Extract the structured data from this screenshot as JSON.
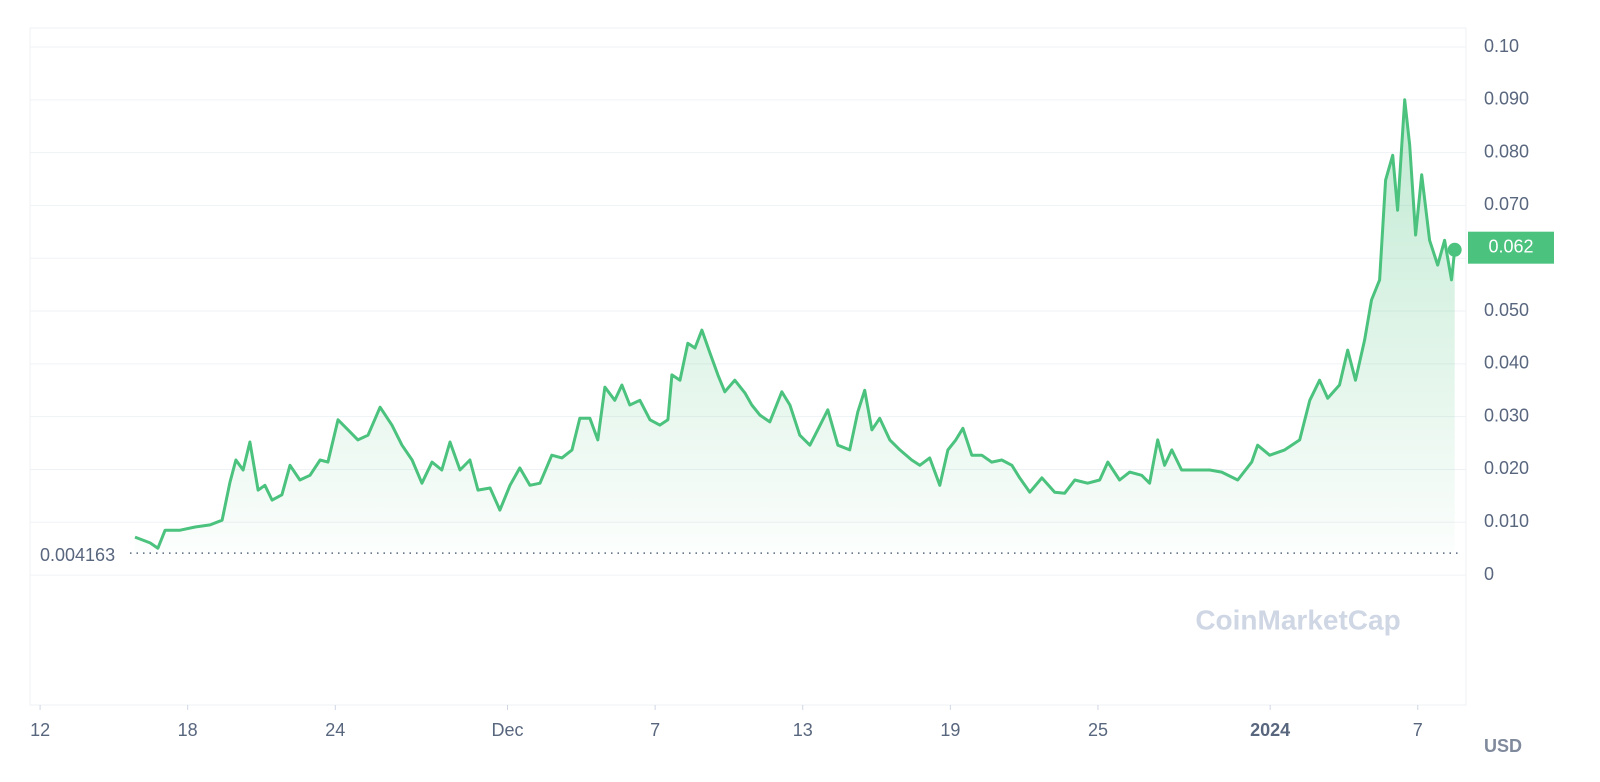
{
  "chart_data": {
    "type": "line",
    "x": [
      3.86,
      4.47,
      4.79,
      5.08,
      5.69,
      6.3,
      6.91,
      7.4,
      7.72,
      7.96,
      8.25,
      8.53,
      8.86,
      9.14,
      9.43,
      9.83,
      10.16,
      10.56,
      10.97,
      11.38,
      11.7,
      12.11,
      12.52,
      12.92,
      13.33,
      13.82,
      14.3,
      14.71,
      15.12,
      15.52,
      15.93,
      16.33,
      16.66,
      17.07,
      17.47,
      17.8,
      18.29,
      18.69,
      19.1,
      19.5,
      19.91,
      20.32,
      20.8,
      21.21,
      21.62,
      21.94,
      22.35,
      22.67,
      22.96,
      23.36,
      23.65,
      23.97,
      24.38,
      24.79,
      25.19,
      25.52,
      25.68,
      26.01,
      26.33,
      26.62,
      26.9,
      27.22,
      27.55,
      27.83,
      28.24,
      28.65,
      28.93,
      29.26,
      29.66,
      30.15,
      30.48,
      30.88,
      31.29,
      31.61,
      32.02,
      32.43,
      32.91,
      33.24,
      33.52,
      33.81,
      34.13,
      34.54,
      34.95,
      35.43,
      35.76,
      36.16,
      36.57,
      36.9,
      37.22,
      37.51,
      37.87,
      38.28,
      38.68,
      39.09,
      39.5,
      39.82,
      40.23,
      40.72,
      41.24,
      41.65,
      42.06,
      42.58,
      43.07,
      43.4,
      43.88,
      44.29,
      44.78,
      45.1,
      45.43,
      45.71,
      46.0,
      46.4,
      46.93,
      47.54,
      48.03,
      48.68,
      49.25,
      49.49,
      49.98,
      50.59,
      51.2,
      51.61,
      52.01,
      52.34,
      52.82,
      53.15,
      53.47,
      53.84,
      54.12,
      54.45,
      54.69,
      54.98,
      55.18,
      55.47,
      55.67,
      55.91,
      56.16,
      56.48,
      56.81,
      57.09,
      57.37,
      57.5
    ],
    "series": [
      {
        "color": "#4bc27d",
        "values": [
          0.0072,
          0.0061,
          0.0051,
          0.0085,
          0.0085,
          0.0091,
          0.0095,
          0.0104,
          0.0176,
          0.0218,
          0.0199,
          0.0252,
          0.0161,
          0.017,
          0.0142,
          0.0152,
          0.0208,
          0.018,
          0.0189,
          0.0218,
          0.0214,
          0.0294,
          0.0275,
          0.0256,
          0.0265,
          0.0318,
          0.0284,
          0.0246,
          0.0218,
          0.0174,
          0.0214,
          0.0199,
          0.0252,
          0.0199,
          0.0218,
          0.0161,
          0.0165,
          0.0123,
          0.017,
          0.0203,
          0.017,
          0.0174,
          0.0227,
          0.0222,
          0.0237,
          0.0297,
          0.0297,
          0.0256,
          0.0356,
          0.0331,
          0.036,
          0.0322,
          0.0331,
          0.0294,
          0.0284,
          0.0294,
          0.0379,
          0.0369,
          0.0439,
          0.043,
          0.0464,
          0.0422,
          0.0379,
          0.0347,
          0.0369,
          0.0345,
          0.0322,
          0.0303,
          0.029,
          0.0347,
          0.0322,
          0.0265,
          0.0246,
          0.0275,
          0.0313,
          0.0246,
          0.0237,
          0.0309,
          0.035,
          0.0275,
          0.0297,
          0.0256,
          0.0237,
          0.0218,
          0.0208,
          0.0222,
          0.017,
          0.0237,
          0.0256,
          0.0278,
          0.0227,
          0.0227,
          0.0214,
          0.0218,
          0.0208,
          0.0184,
          0.0157,
          0.0184,
          0.0157,
          0.0155,
          0.018,
          0.0174,
          0.018,
          0.0214,
          0.018,
          0.0195,
          0.0189,
          0.0174,
          0.0256,
          0.0208,
          0.0237,
          0.0199,
          0.0199,
          0.0199,
          0.0195,
          0.018,
          0.0214,
          0.0246,
          0.0227,
          0.0237,
          0.0256,
          0.0331,
          0.0369,
          0.0335,
          0.036,
          0.0426,
          0.0369,
          0.0445,
          0.0521,
          0.0559,
          0.0748,
          0.0795,
          0.0691,
          0.09,
          0.0814,
          0.0644,
          0.0758,
          0.0634,
          0.0587,
          0.0634,
          0.0559,
          0.0616
        ]
      }
    ],
    "xlim": [
      -0.41,
      57.96
    ],
    "xticks": [
      {
        "value": 0,
        "label": "12"
      },
      {
        "value": 6,
        "label": "18"
      },
      {
        "value": 12,
        "label": "24"
      },
      {
        "value": 19,
        "label": "Dec"
      },
      {
        "value": 25,
        "label": "7"
      },
      {
        "value": 31,
        "label": "13"
      },
      {
        "value": 37,
        "label": "19"
      },
      {
        "value": 43,
        "label": "25"
      },
      {
        "value": 50,
        "label": "2024"
      },
      {
        "value": 56,
        "label": "7"
      }
    ],
    "ylim": [
      -0.0246,
      0.1036
    ],
    "yticks": [
      0,
      {
        "value": 0.01,
        "label": "0.010"
      },
      {
        "value": 0.02,
        "label": "0.020"
      },
      {
        "value": 0.03,
        "label": "0.030"
      },
      {
        "value": 0.04,
        "label": "0.040"
      },
      {
        "value": 0.05,
        "label": "0.050"
      },
      {
        "value": 0.06,
        "label": "0.060"
      },
      {
        "value": 0.07,
        "label": "0.070"
      },
      {
        "value": 0.08,
        "label": "0.080"
      },
      {
        "value": 0.09,
        "label": "0.090"
      },
      {
        "value": 0.1,
        "label": "0.10"
      }
    ],
    "grid": true,
    "baseline": 0.004163,
    "current_price": 0.062,
    "currency": "USD",
    "watermark": "CoinMarketCap"
  }
}
